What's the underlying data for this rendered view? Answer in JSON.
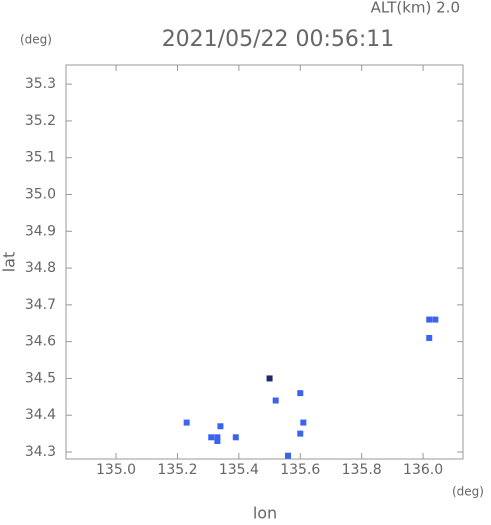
{
  "chart_data": {
    "type": "scatter",
    "title": "2021/05/22 00:56:11",
    "subtitle": "ALT(km) 2.0",
    "x_label": "lon",
    "y_label": "lat",
    "x_unit": "(deg)",
    "y_unit": "(deg)",
    "xlim": [
      134.837,
      136.13
    ],
    "ylim": [
      34.281,
      35.352
    ],
    "xticks": [
      {
        "value": 135.0,
        "label": "135.0"
      },
      {
        "value": 135.2,
        "label": "135.2"
      },
      {
        "value": 135.4,
        "label": "135.4"
      },
      {
        "value": 135.6,
        "label": "135.6"
      },
      {
        "value": 135.8,
        "label": "135.8"
      },
      {
        "value": 136.0,
        "label": "136.0"
      }
    ],
    "yticks": [
      34.3,
      34.4,
      34.5,
      34.6,
      34.7,
      34.8,
      34.9,
      {
        "value": 35.0,
        "label": "35.0"
      },
      35.1,
      35.2,
      35.3
    ],
    "series": [
      {
        "color": "#3b63f0",
        "x": [
          135.23,
          135.33,
          135.34,
          135.33,
          135.31,
          135.39,
          135.52,
          135.56,
          135.6,
          135.6,
          135.61,
          136.04,
          136.02,
          136.02
        ],
        "y": [
          34.38,
          34.34,
          34.37,
          34.33,
          34.34,
          34.34,
          34.44,
          34.29,
          34.35,
          34.46,
          34.38,
          34.66,
          34.66,
          34.61
        ]
      },
      {
        "color": "#1a2a6a",
        "x": [
          135.5
        ],
        "y": [
          34.5
        ]
      }
    ]
  }
}
